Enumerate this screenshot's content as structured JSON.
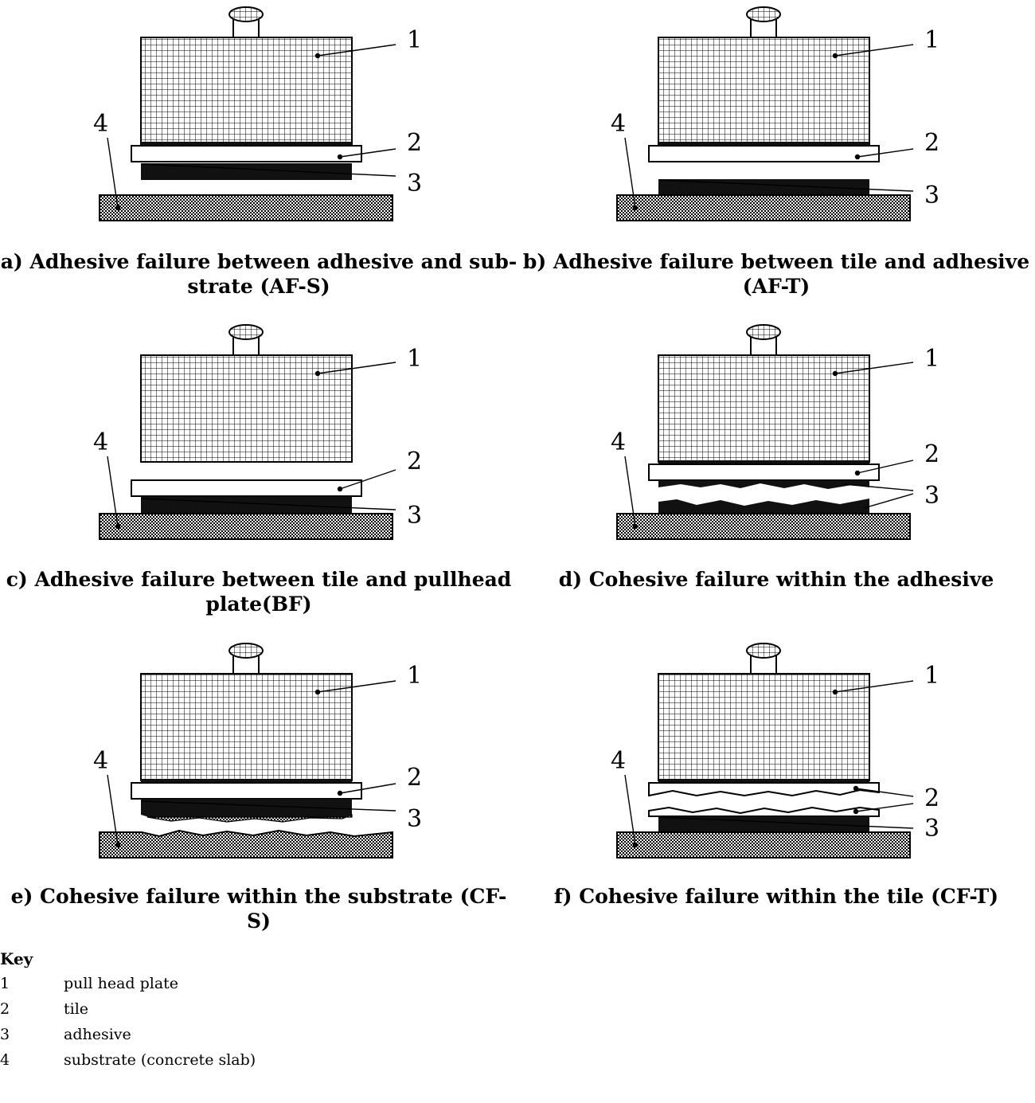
{
  "panels": [
    {
      "id": "a",
      "caption_l1": "a) Adhesive failure between adhesive and sub-",
      "caption_l2": "strate (AF-S)",
      "callouts": [
        "1",
        "2",
        "3",
        "4"
      ]
    },
    {
      "id": "b",
      "caption_l1": "b) Adhesive failure between tile and adhesive",
      "caption_l2": "(AF-T)",
      "callouts": [
        "1",
        "2",
        "3",
        "4"
      ]
    },
    {
      "id": "c",
      "caption_l1": "c) Adhesive failure between tile and pullhead",
      "caption_l2": "plate(BF)",
      "callouts": [
        "1",
        "2",
        "3",
        "4"
      ]
    },
    {
      "id": "d",
      "caption_l1": "d) Cohesive failure within the adhesive",
      "caption_l2": "",
      "callouts": [
        "1",
        "2",
        "3",
        "4"
      ]
    },
    {
      "id": "e",
      "caption_l1": "e) Cohesive failure within the substrate (CF-S)",
      "caption_l2": "",
      "callouts": [
        "1",
        "2",
        "3",
        "4"
      ]
    },
    {
      "id": "f",
      "caption_l1": "f) Cohesive failure within the tile (CF-T)",
      "caption_l2": "",
      "callouts": [
        "1",
        "2",
        "3",
        "4"
      ]
    }
  ],
  "key": {
    "title": "Key",
    "items": [
      {
        "num": "1",
        "label": "pull head plate"
      },
      {
        "num": "2",
        "label": "tile"
      },
      {
        "num": "3",
        "label": "adhesive"
      },
      {
        "num": "4",
        "label": "substrate (concrete slab)"
      }
    ]
  },
  "colors": {
    "line": "#000000",
    "fill_light": "#ffffff",
    "adhesive": "#111111"
  }
}
